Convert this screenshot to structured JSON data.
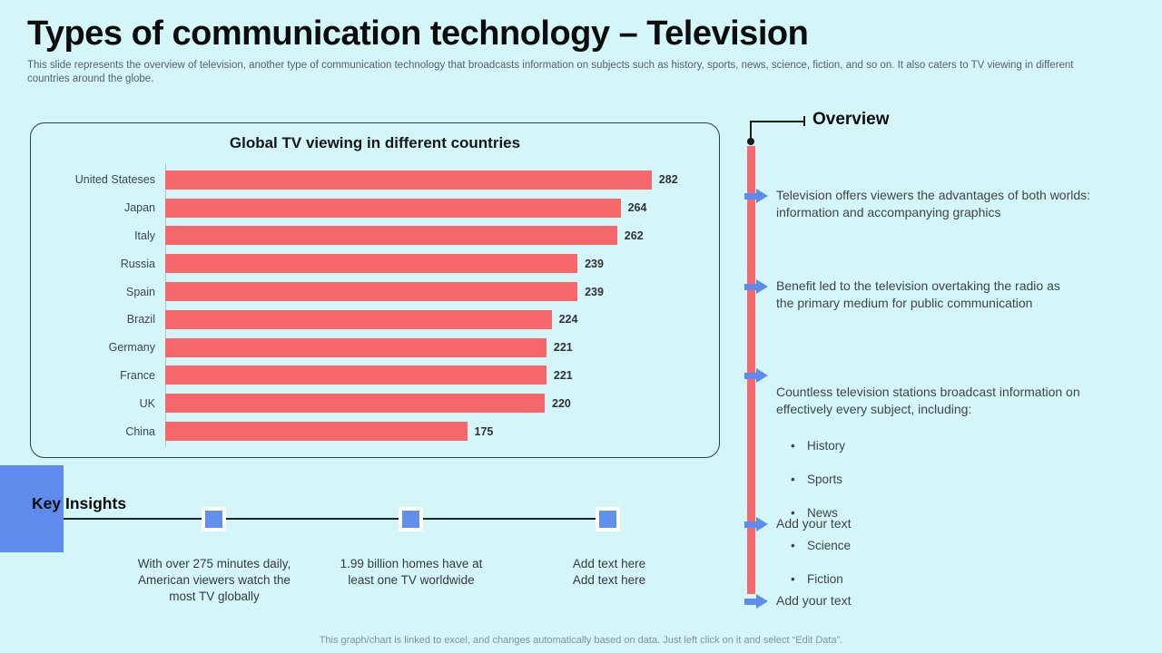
{
  "slide": {
    "title": "Types of communication technology – Television",
    "subtitle": "This slide represents the overview of television, another type of communication technology that broadcasts information on subjects such as history, sports, news, science, fiction, and so on. It also caters to TV viewing in different\ncountries around the globe.",
    "footer": "This graph/chart is linked to excel, and changes automatically based on data. Just left click on it and select “Edit Data”."
  },
  "chart_data": {
    "type": "bar",
    "orientation": "horizontal",
    "title": "Global TV viewing in different countries",
    "categories": [
      "United Stateses",
      "Japan",
      "Italy",
      "Russia",
      "Spain",
      "Brazil",
      "Germany",
      "France",
      "UK",
      "China"
    ],
    "values": [
      282,
      264,
      262,
      239,
      239,
      224,
      221,
      221,
      220,
      175
    ],
    "xlabel": "",
    "ylabel": "",
    "xlim": [
      0,
      300
    ],
    "grid": false,
    "legend": false,
    "value_labels": true,
    "bar_color": "#f6676c"
  },
  "overview": {
    "title": "Overview",
    "bullets": [
      {
        "text": "Television offers viewers the advantages of both worlds:\ninformation and accompanying graphics"
      },
      {
        "text": "Benefit led to the television overtaking the radio as\nthe primary medium for public communication"
      },
      {
        "text": "Countless television stations broadcast information on\neffectively every subject, including:",
        "sub_items": [
          "History",
          "Sports",
          "News",
          "Science",
          "Fiction"
        ]
      },
      {
        "text": "Add your text"
      },
      {
        "text": "Add your text"
      }
    ]
  },
  "key_insights": {
    "title": "Key Insights",
    "items": [
      "With over 275 minutes daily,\nAmerican viewers watch the\nmost TV globally",
      "1.99 billion homes have at\nleast one TV worldwide",
      "Add text here\nAdd text here"
    ]
  },
  "colors": {
    "background": "#d4f6f8",
    "bar": "#f6676c",
    "accent_blue": "#5c8cec",
    "timeline_red": "#f5696e",
    "card_border": "#2f3e47"
  }
}
